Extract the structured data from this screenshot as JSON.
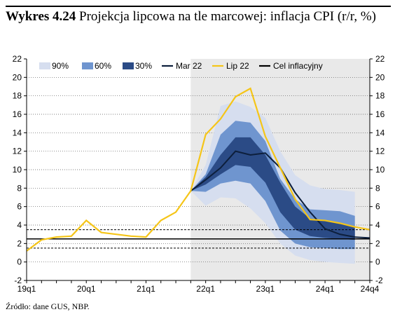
{
  "title": {
    "number": "Wykres 4.24",
    "text": "Projekcja lipcowa na tle marcowej: inflacja CPI (r/r, %)"
  },
  "footnote": "Źródło: dane GUS, NBP.",
  "colors": {
    "band90": "#d6deef",
    "band60": "#6f95cf",
    "band30": "#2b4b86",
    "mar22": "#0d1f3c",
    "lip22": "#f5c518",
    "target": "#000000",
    "shade": "#e9e9e9"
  },
  "chart_data": {
    "type": "line",
    "x_labels": [
      "19q1",
      "20q1",
      "21q1",
      "22q1",
      "23q1",
      "24q1",
      "24q4"
    ],
    "quarters": [
      "19q1",
      "19q2",
      "19q3",
      "19q4",
      "20q1",
      "20q2",
      "20q3",
      "20q4",
      "21q1",
      "21q2",
      "21q3",
      "21q4",
      "22q1",
      "22q2",
      "22q3",
      "22q4",
      "23q1",
      "23q2",
      "23q3",
      "23q4",
      "24q1",
      "24q2",
      "24q3",
      "24q4"
    ],
    "ylim": [
      -2,
      22
    ],
    "yticks": [
      -2,
      0,
      2,
      4,
      6,
      8,
      10,
      12,
      14,
      16,
      18,
      20,
      22
    ],
    "projection_start": "21q4",
    "legend": [
      "90%",
      "60%",
      "30%",
      "Mar 22",
      "Lip 22",
      "Cel inflacyjny"
    ],
    "target": {
      "name": "Cel inflacyjny",
      "value": 2.5,
      "band": [
        1.5,
        3.5
      ]
    },
    "history": [
      1.2,
      2.4,
      2.7,
      2.8,
      4.5,
      3.2,
      3.0,
      2.8,
      2.7,
      4.5,
      5.4,
      7.7
    ],
    "series": [
      {
        "name": "Mar 22",
        "values": [
          null,
          null,
          null,
          null,
          null,
          null,
          null,
          null,
          null,
          null,
          null,
          7.7,
          8.9,
          10.2,
          12.0,
          11.6,
          11.8,
          10.2,
          7.5,
          5.4,
          3.6,
          3.0,
          2.7,
          2.6
        ]
      },
      {
        "name": "Lip 22",
        "values": [
          null,
          null,
          null,
          null,
          null,
          null,
          null,
          null,
          null,
          null,
          null,
          7.7,
          13.8,
          15.5,
          17.9,
          18.8,
          13.6,
          10.2,
          6.8,
          4.6,
          4.5,
          4.2,
          3.8,
          3.5
        ]
      }
    ],
    "fan": {
      "quarters_from": "21q4",
      "band90_low": [
        7.7,
        6.1,
        7.0,
        6.9,
        5.8,
        4.2,
        2.0,
        0.7,
        0.2,
        0.0,
        -0.1,
        -0.2
      ],
      "band90_high": [
        7.7,
        10.5,
        16.9,
        17.4,
        16.8,
        15.6,
        12.0,
        9.4,
        8.3,
        7.9,
        7.8,
        7.6
      ],
      "band60_low": [
        7.7,
        7.6,
        8.5,
        8.8,
        8.5,
        6.6,
        3.4,
        2.0,
        1.6,
        1.5,
        1.4,
        1.4
      ],
      "band60_high": [
        7.7,
        9.5,
        13.8,
        15.3,
        15.1,
        13.1,
        9.0,
        6.8,
        5.7,
        5.6,
        5.5,
        5.0
      ],
      "band30_low": [
        7.7,
        8.4,
        9.5,
        10.5,
        10.3,
        8.6,
        5.4,
        3.5,
        2.8,
        2.6,
        2.5,
        2.4
      ],
      "band30_high": [
        7.7,
        9.2,
        11.6,
        13.5,
        13.5,
        11.6,
        8.6,
        6.0,
        4.7,
        4.5,
        4.2,
        3.8
      ]
    }
  }
}
